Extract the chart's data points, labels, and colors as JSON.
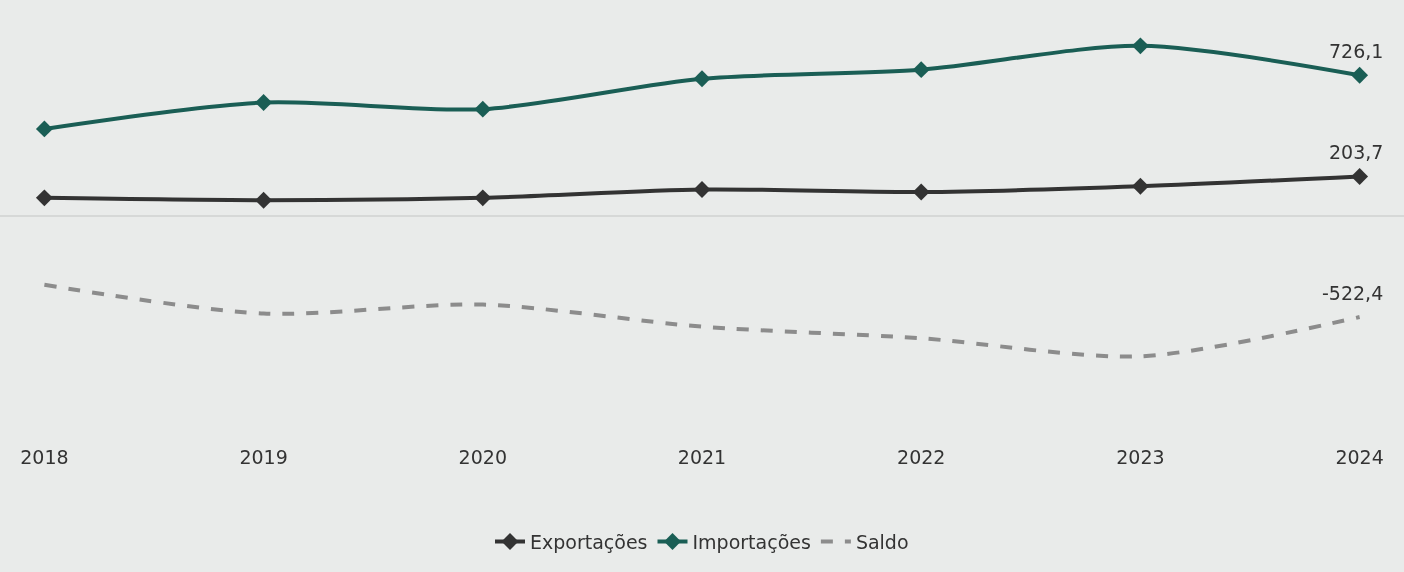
{
  "chart_data": {
    "type": "line",
    "categories": [
      "2018",
      "2019",
      "2020",
      "2021",
      "2022",
      "2023",
      "2024"
    ],
    "series": [
      {
        "name": "Exportações",
        "color": "#333333",
        "marker": "diamond",
        "line_style": "solid",
        "values": [
          93,
          81,
          93,
          136,
          123,
          153,
          203.7
        ],
        "value_labels": [
          null,
          null,
          null,
          null,
          null,
          null,
          "203,7"
        ]
      },
      {
        "name": "Importações",
        "color": "#1a5e55",
        "marker": "diamond",
        "line_style": "solid",
        "values": [
          449,
          585,
          551,
          708,
          755,
          878,
          726.1
        ],
        "value_labels": [
          null,
          null,
          null,
          null,
          null,
          null,
          "726,1"
        ]
      },
      {
        "name": "Saldo",
        "color": "#8c8c8c",
        "marker": "none",
        "line_style": "dashed",
        "values": [
          -356,
          -504,
          -458,
          -572,
          -632,
          -725,
          -522.4
        ],
        "value_labels": [
          null,
          null,
          null,
          null,
          null,
          null,
          "-522,4"
        ]
      }
    ],
    "tick_labels": "x",
    "grid": false,
    "legend": "bottom",
    "ref_lines": [
      {
        "axis": "y",
        "value": 0,
        "color": "#cfd2d1"
      }
    ]
  }
}
